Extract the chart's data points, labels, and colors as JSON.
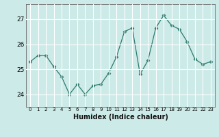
{
  "x": [
    0,
    1,
    2,
    3,
    4,
    5,
    6,
    7,
    8,
    9,
    10,
    11,
    12,
    13,
    14,
    15,
    16,
    17,
    18,
    19,
    20,
    21,
    22,
    23
  ],
  "y": [
    25.3,
    25.55,
    25.55,
    25.1,
    24.7,
    24.0,
    24.4,
    24.0,
    24.35,
    24.4,
    24.85,
    25.5,
    26.5,
    26.65,
    24.8,
    25.35,
    26.65,
    27.15,
    26.75,
    26.6,
    26.1,
    25.4,
    25.2,
    25.3
  ],
  "line_color": "#2d7a6e",
  "marker": "D",
  "marker_size": 2.5,
  "bg_color": "#cceae7",
  "grid_color": "#ffffff",
  "xlabel": "Humidex (Indice chaleur)",
  "yticks": [
    24,
    25,
    26,
    27
  ],
  "ylim": [
    23.5,
    27.6
  ],
  "xlim": [
    -0.5,
    23.5
  ],
  "top_label": "27"
}
